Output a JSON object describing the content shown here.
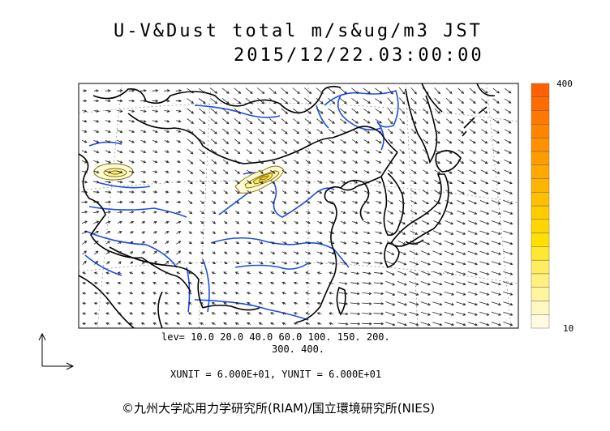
{
  "title": {
    "line1": "U-V&Dust total m/s&ug/m3 JST",
    "line2": "2015/12/22.03:00:00"
  },
  "colorbar": {
    "max_label": "400",
    "min_label": "10",
    "colors": [
      "#fffbe0",
      "#fff8c0",
      "#fff4a0",
      "#fff080",
      "#ffed60",
      "#ffe830",
      "#ffe000",
      "#ffd600",
      "#ffcc00",
      "#ffc000",
      "#ffb400",
      "#ffa800",
      "#ff9c00",
      "#ff9000",
      "#ff8400",
      "#ff7800",
      "#ff6c00",
      "#ff6000"
    ]
  },
  "levels": {
    "line1": "lev= 10.0 20.0 40.0 60.0 100. 150. 200.",
    "line2": "300. 400."
  },
  "units_text": "XUNIT = 6.000E+01, YUNIT = 6.000E+01",
  "credit": "©九州大学応用力学研究所(RIAM)/国立環境研究所(NIES)",
  "wind": {
    "direction_field": "northwesterly monsoon flow over East Asia",
    "reference_vector_icon": "axis-arrows-icon"
  },
  "colors": {
    "coastline": "#000000",
    "rivers": "#1a4fe0",
    "dust_contour": "#7a6a00"
  }
}
